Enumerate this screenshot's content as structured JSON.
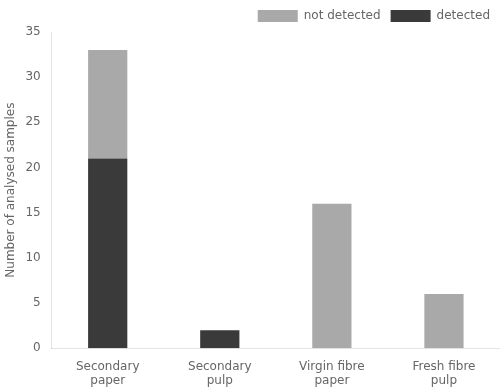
{
  "chart_data": {
    "type": "bar",
    "stacked": true,
    "categories": [
      "Secondary\npaper",
      "Secondary\npulp",
      "Virgin fibre\npaper",
      "Fresh fibre\npulp"
    ],
    "series": [
      {
        "name": "detected",
        "color": "#3a3a3a",
        "values": [
          21,
          2,
          0,
          0
        ]
      },
      {
        "name": "not detected",
        "color": "#a9a9a9",
        "values": [
          12,
          0,
          16,
          6
        ]
      }
    ],
    "ylabel": "Number of analysed samples",
    "ylim": [
      0,
      35
    ],
    "yticks": [
      0,
      5,
      10,
      15,
      20,
      25,
      30,
      35
    ],
    "grid": false,
    "legend": "upper right"
  }
}
